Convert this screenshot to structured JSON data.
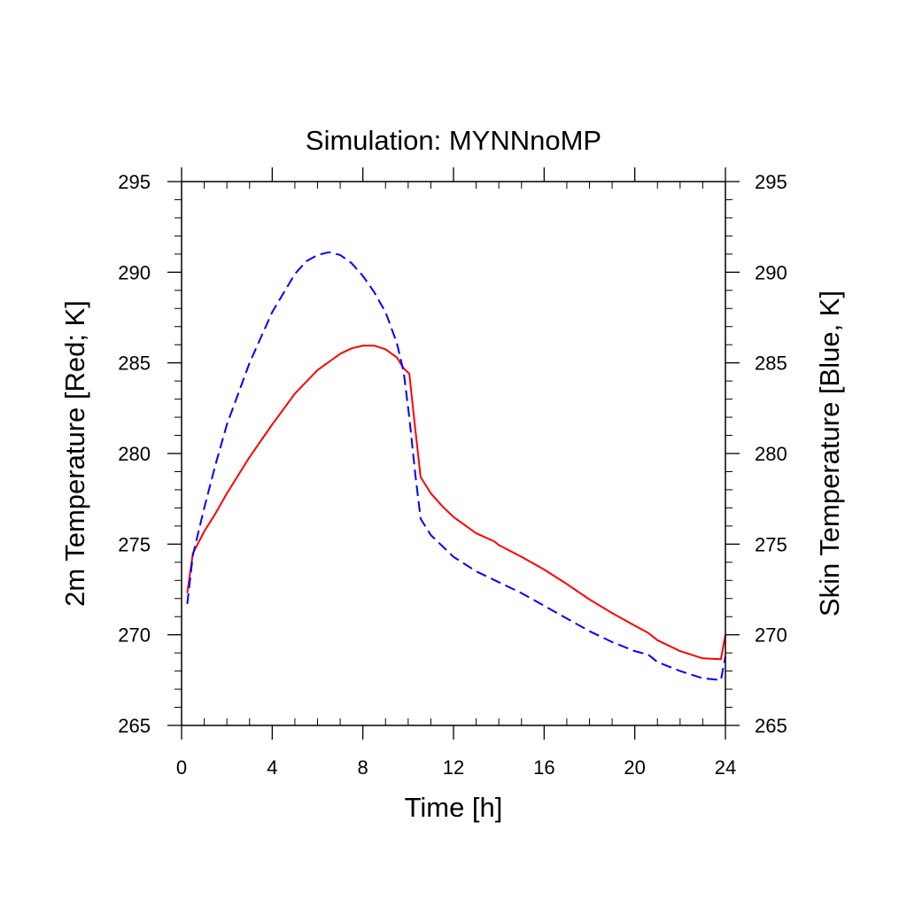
{
  "chart_data": {
    "type": "line",
    "title": "Simulation: MYNNnoMP",
    "xlabel": "Time [h]",
    "ylabel_left": "2m Temperature [Red; K]",
    "ylabel_right": "Skin Temperature [Blue, K]",
    "xlim": [
      0,
      24
    ],
    "ylim": [
      265,
      295
    ],
    "xticks": [
      0,
      4,
      8,
      12,
      16,
      20,
      24
    ],
    "yticks": [
      265,
      270,
      275,
      280,
      285,
      290,
      295
    ],
    "grid": false,
    "colors": {
      "t2m": "#ff0000",
      "tsk": "#0000ff"
    },
    "series": [
      {
        "color": "#ff0000",
        "style": "solid",
        "x": [
          0.25,
          0.5,
          1.0,
          1.5,
          2.0,
          3.0,
          4.0,
          5.0,
          6.0,
          7.0,
          7.5,
          8.0,
          8.5,
          9.0,
          9.5,
          9.8,
          10.05,
          10.3,
          10.55,
          11.0,
          11.5,
          12.0,
          13.0,
          13.8,
          14.0,
          15.0,
          16.0,
          17.0,
          18.0,
          19.0,
          20.0,
          20.6,
          21.0,
          22.0,
          23.0,
          23.8,
          24.0
        ],
        "y": [
          272.3,
          274.5,
          275.7,
          276.7,
          277.8,
          279.8,
          281.6,
          283.3,
          284.6,
          285.5,
          285.8,
          285.95,
          285.95,
          285.75,
          285.3,
          284.7,
          284.4,
          281.5,
          278.7,
          277.8,
          277.1,
          276.5,
          275.6,
          275.15,
          274.95,
          274.3,
          273.6,
          272.8,
          271.95,
          271.2,
          270.5,
          270.1,
          269.7,
          269.1,
          268.7,
          268.65,
          270.0
        ]
      },
      {
        "color": "#0000ff",
        "style": "dashed",
        "x": [
          0.25,
          0.5,
          1.0,
          1.5,
          2.0,
          3.0,
          4.0,
          5.0,
          5.5,
          6.0,
          6.5,
          7.0,
          7.5,
          8.0,
          8.5,
          9.0,
          9.5,
          9.8,
          10.05,
          10.3,
          10.55,
          11.0,
          12.0,
          13.0,
          14.0,
          15.0,
          16.0,
          17.0,
          18.0,
          19.0,
          20.0,
          20.6,
          21.0,
          22.0,
          23.0,
          23.8,
          24.0
        ],
        "y": [
          271.7,
          274.4,
          277.0,
          279.4,
          281.6,
          285.0,
          287.8,
          289.9,
          290.6,
          290.95,
          291.1,
          290.95,
          290.5,
          289.8,
          288.9,
          287.8,
          286.1,
          284.5,
          282.0,
          279.0,
          276.4,
          275.5,
          274.3,
          273.5,
          272.9,
          272.3,
          271.6,
          270.9,
          270.2,
          269.6,
          269.1,
          268.9,
          268.5,
          268.0,
          267.6,
          267.5,
          268.8
        ]
      }
    ]
  }
}
